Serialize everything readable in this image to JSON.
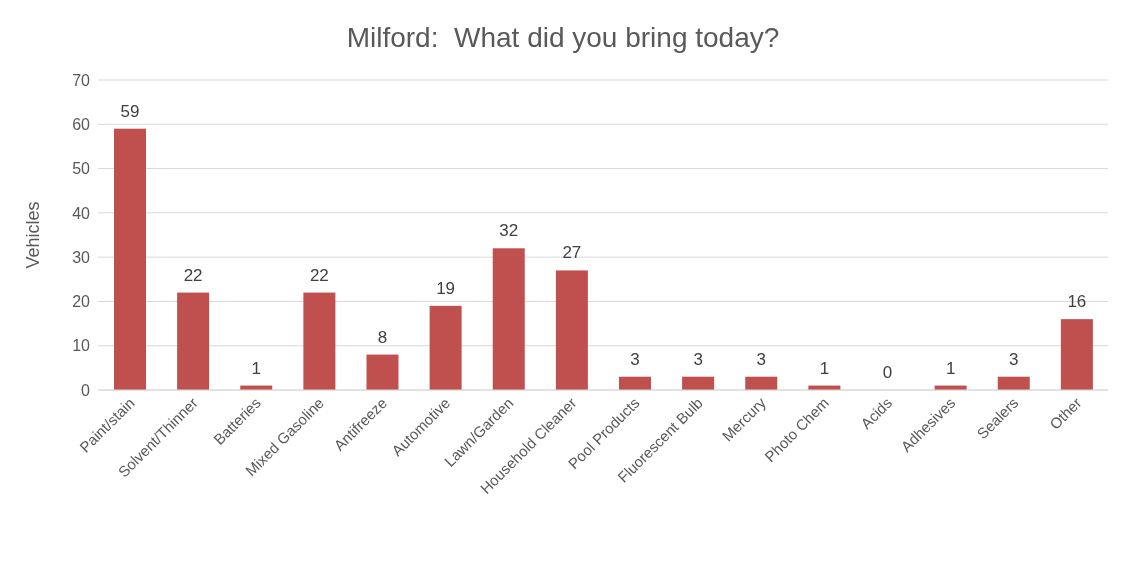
{
  "chart_data": {
    "type": "bar",
    "title": "Milford:  What did you bring today?",
    "ylabel": "Vehicles",
    "categories": [
      "Paint/stain",
      "Solvent/Thinner",
      "Batteries",
      "Mixed Gasoline",
      "Antifreeze",
      "Automotive",
      "Lawn/Garden",
      "Household Cleaner",
      "Pool Products",
      "Fluorescent Bulb",
      "Mercury",
      "Photo Chem",
      "Acids",
      "Adhesives",
      "Sealers",
      "Other"
    ],
    "values": [
      59,
      22,
      1,
      22,
      8,
      19,
      32,
      27,
      3,
      3,
      3,
      1,
      0,
      1,
      3,
      16
    ],
    "color": "#c0504d",
    "ylim": [
      0,
      70
    ],
    "yticks": [
      0,
      10,
      20,
      30,
      40,
      50,
      60,
      70
    ],
    "grid": "y",
    "data_labels": true
  }
}
